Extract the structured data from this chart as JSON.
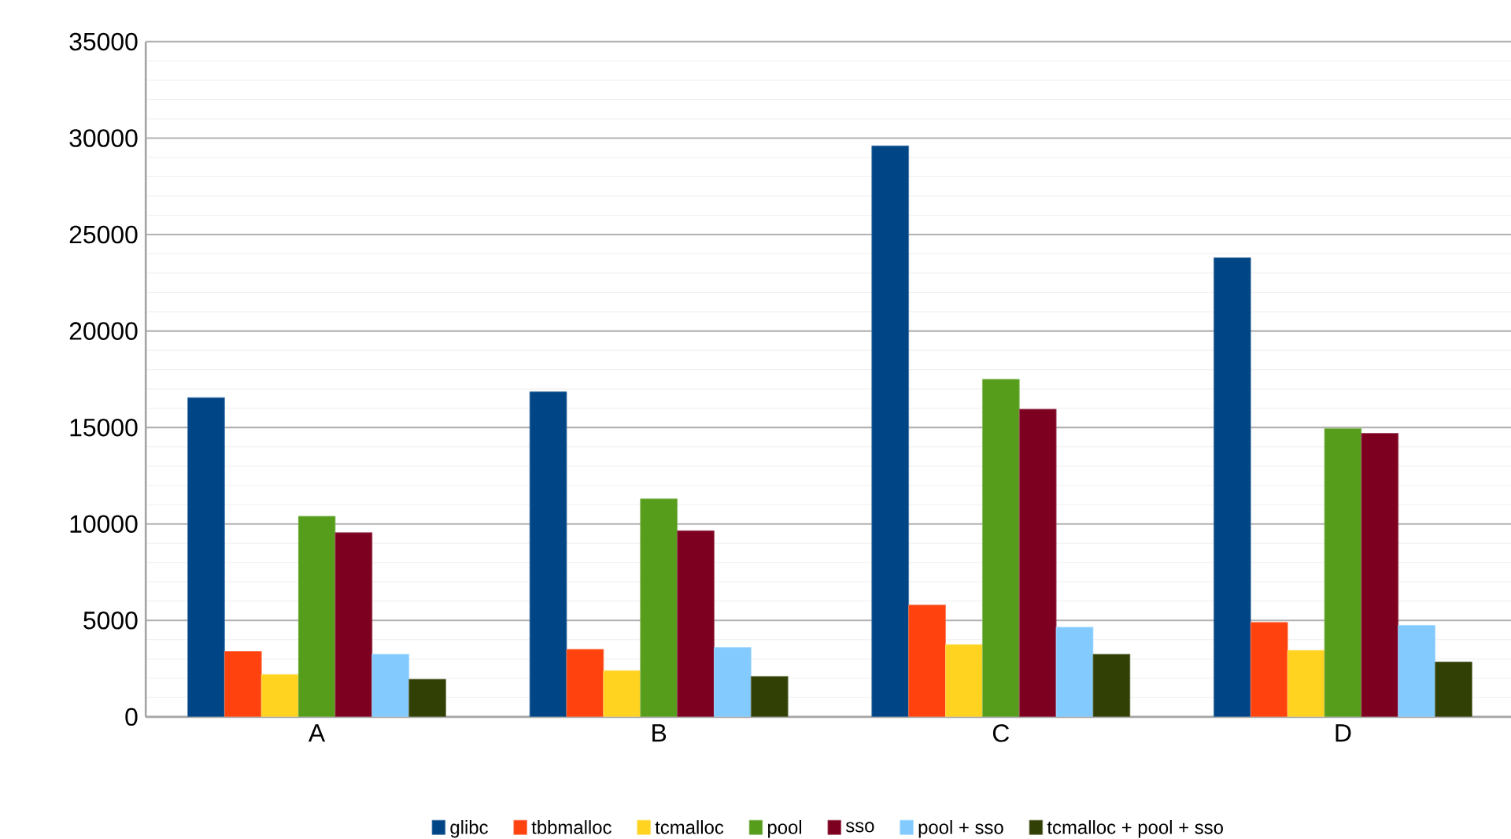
{
  "chart_data": {
    "type": "bar",
    "categories": [
      "A",
      "B",
      "C",
      "D"
    ],
    "series": [
      {
        "name": "glibc",
        "color": "#004586",
        "values": [
          16550,
          16850,
          29600,
          23800
        ]
      },
      {
        "name": "tbbmalloc",
        "color": "#ff420e",
        "values": [
          3400,
          3500,
          5800,
          4900
        ]
      },
      {
        "name": "tcmalloc",
        "color": "#ffd320",
        "values": [
          2200,
          2400,
          3750,
          3450
        ]
      },
      {
        "name": "pool",
        "color": "#579d1c",
        "values": [
          10400,
          11300,
          17500,
          14950
        ]
      },
      {
        "name": "sso",
        "color": "#7e0021",
        "values": [
          9550,
          9650,
          15950,
          14700
        ]
      },
      {
        "name": "pool + sso",
        "color": "#83caff",
        "values": [
          3250,
          3600,
          4650,
          4750
        ]
      },
      {
        "name": "tcmalloc + pool + sso",
        "color": "#314004",
        "values": [
          1950,
          2100,
          3250,
          2850
        ]
      }
    ],
    "ylim": [
      0,
      35000
    ],
    "yticks": [
      0,
      5000,
      10000,
      15000,
      20000,
      25000,
      30000,
      35000
    ],
    "grid": "y",
    "legend": "bottom"
  }
}
